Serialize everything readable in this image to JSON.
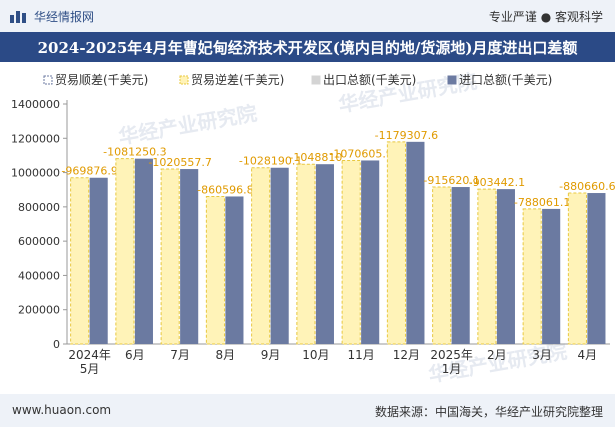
{
  "header": {
    "brand": "华经情报网",
    "tagline": "专业严谨 ● 客观科学",
    "logo_icon": "bar-chart-logo-icon"
  },
  "title": "2024-2025年4月年曹妃甸经济技术开发区(境内目的地/货源地)月度进出口差额",
  "watermark": "华经产业研究院",
  "footer": {
    "website": "www.huaon.com",
    "source": "数据来源：中国海关，华经产业研究院整理"
  },
  "colors": {
    "export_bar": "#d4d4d4",
    "import_bar": "#6b7aa1",
    "trade_deficit_bar": "#fff3b8",
    "trade_deficit_border": "#e8c840",
    "header_bg": "#2b4a86"
  },
  "chart_data": {
    "type": "bar",
    "categories": [
      "2024年\n5月",
      "6月",
      "7月",
      "8月",
      "9月",
      "10月",
      "11月",
      "12月",
      "2025年\n1月",
      "2月",
      "3月",
      "4月"
    ],
    "series": [
      {
        "name": "贸易顺差(千美元)",
        "values": [
          0,
          0,
          0,
          0,
          0,
          0,
          0,
          0,
          0,
          0,
          0,
          0
        ]
      },
      {
        "name": "贸易逆差(千美元)",
        "values": [
          969876.9,
          1081250.3,
          1020557.7,
          860596.8,
          1028190.1,
          1048810,
          1070605.9,
          1179307.6,
          915620.1,
          903442.1,
          788061.1,
          880660.6
        ]
      },
      {
        "name": "出口总额(千美元)",
        "values": [
          0,
          0,
          0,
          0,
          0,
          0,
          0,
          0,
          0,
          0,
          0,
          0
        ]
      },
      {
        "name": "进口总额(千美元)",
        "values": [
          969876.9,
          1081250.3,
          1020557.7,
          860596.8,
          1028190.1,
          1048810,
          1070605.9,
          1179307.6,
          915620.1,
          903442.1,
          788061.1,
          880660.6
        ]
      }
    ],
    "data_labels": [
      "969876.9",
      "1081250.3",
      "1020557.7",
      "860596.8",
      "1028190.1",
      "1048810",
      "1070605.9",
      "1179307.6",
      "915620.1",
      "903442.1",
      "788061.1",
      "880660.6"
    ],
    "yticks": [
      "0",
      "200000",
      "400000",
      "600000",
      "800000",
      "1000000",
      "1200000",
      "1400000"
    ],
    "ylim": [
      0,
      1400000
    ],
    "legend": "top",
    "grid": false
  }
}
